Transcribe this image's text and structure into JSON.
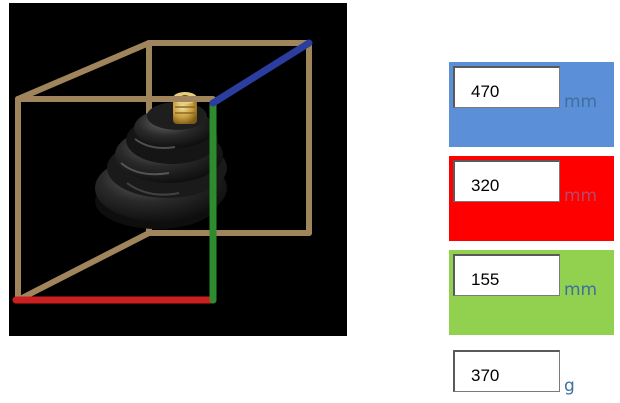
{
  "dimensions": {
    "length": {
      "value": "470",
      "unit": "mm",
      "color": "#5b8fd8",
      "unit_color": "#3f6f9f"
    },
    "width": {
      "value": "320",
      "unit": "mm",
      "color": "#ff0000",
      "unit_color": "#b54a6a"
    },
    "height": {
      "value": "155",
      "unit": "mm",
      "color": "#92d050",
      "unit_color": "#3f6f9f"
    }
  },
  "weight": {
    "value": "370",
    "unit": "g",
    "unit_color": "#3f6f9f"
  },
  "axis_colors": {
    "x": "#cc1f1f",
    "y": "#2e8b2e",
    "z": "#2b3ea0",
    "frame": "#a0845c"
  }
}
